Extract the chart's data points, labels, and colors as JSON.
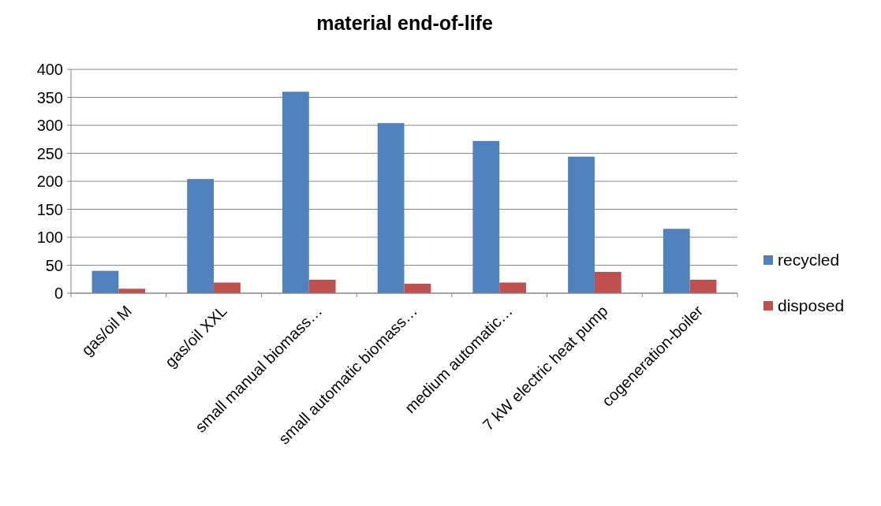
{
  "chart_data": {
    "type": "bar",
    "title": "material end-of-life",
    "categories": [
      "gas/oil M",
      "gas/oil XXL",
      "small manual biomass…",
      "small automatic biomass…",
      "medium automatic…",
      "7 kW electric heat pump",
      "cogeneration-boiler"
    ],
    "series": [
      {
        "name": "recycled",
        "color": "#4f81bd",
        "values": [
          40,
          204,
          360,
          304,
          272,
          244,
          115
        ]
      },
      {
        "name": "disposed",
        "color": "#c0504d",
        "values": [
          8,
          19,
          24,
          17,
          19,
          38,
          24
        ]
      }
    ],
    "ylim": [
      0,
      400
    ],
    "yticks": [
      0,
      50,
      100,
      150,
      200,
      250,
      300,
      350,
      400
    ],
    "grid": "y",
    "legend": "right"
  }
}
